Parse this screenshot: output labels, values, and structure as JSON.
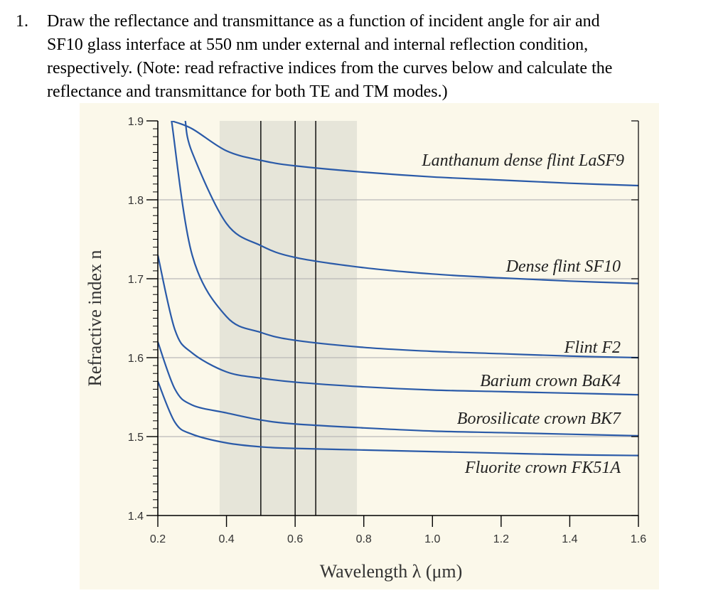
{
  "question": {
    "number": "1.",
    "lines": [
      "Draw the reflectance and transmittance as a function of incident angle for air and",
      "SF10 glass interface at 550 nm under external and internal reflection condition,",
      "respectively. (Note: read refractive indices from the curves below and calculate the",
      "reflectance and transmittance for both TE and TM modes.)"
    ]
  },
  "colors": {
    "plot_bg": "#fbf8ea",
    "visible_band": "#e6e5d9",
    "curve": "#2a5aa8",
    "grid": "#b9b9b9",
    "axis": "#000000",
    "marker_line": "#000000"
  },
  "chart_data": {
    "type": "line",
    "xlabel": "Wavelength λ (μm)",
    "ylabel": "Refractive index n",
    "xlim": [
      0.2,
      1.6
    ],
    "ylim": [
      1.4,
      1.9
    ],
    "xticks": [
      "0.2",
      "0.4",
      "0.6",
      "0.8",
      "1.0",
      "1.2",
      "1.4",
      "1.6"
    ],
    "yticks": [
      "1.4",
      "1.5",
      "1.6",
      "1.7",
      "1.8",
      "1.9"
    ],
    "grid": "horizontal",
    "shaded_band": [
      0.38,
      0.78
    ],
    "vertical_markers": [
      0.5,
      0.6,
      0.66
    ],
    "series": [
      {
        "name": "Lanthanum dense flint LaSF9",
        "x": [
          0.24,
          0.3,
          0.4,
          0.5,
          0.6,
          0.8,
          1.0,
          1.2,
          1.4,
          1.6
        ],
        "y": [
          1.9,
          1.89,
          1.862,
          1.85,
          1.843,
          1.835,
          1.829,
          1.825,
          1.821,
          1.818
        ]
      },
      {
        "name": "Dense flint SF10",
        "x": [
          0.28,
          0.3,
          0.4,
          0.5,
          0.6,
          0.8,
          1.0,
          1.2,
          1.4,
          1.6
        ],
        "y": [
          1.9,
          1.86,
          1.77,
          1.742,
          1.727,
          1.714,
          1.706,
          1.701,
          1.697,
          1.694
        ]
      },
      {
        "name": "Flint F2",
        "x": [
          0.24,
          0.3,
          0.4,
          0.5,
          0.6,
          0.8,
          1.0,
          1.2,
          1.4,
          1.6
        ],
        "y": [
          1.9,
          1.73,
          1.652,
          1.632,
          1.622,
          1.613,
          1.608,
          1.605,
          1.602,
          1.6
        ]
      },
      {
        "name": "Barium crown BaK4",
        "x": [
          0.2,
          0.25,
          0.3,
          0.4,
          0.5,
          0.6,
          0.8,
          1.0,
          1.2,
          1.4,
          1.6
        ],
        "y": [
          1.73,
          1.635,
          1.606,
          1.582,
          1.574,
          1.569,
          1.563,
          1.559,
          1.557,
          1.555,
          1.553
        ]
      },
      {
        "name": "Borosilicate crown BK7",
        "x": [
          0.2,
          0.25,
          0.3,
          0.4,
          0.5,
          0.6,
          0.8,
          1.0,
          1.2,
          1.4,
          1.6
        ],
        "y": [
          1.62,
          1.56,
          1.54,
          1.53,
          1.521,
          1.516,
          1.511,
          1.507,
          1.505,
          1.503,
          1.501
        ]
      },
      {
        "name": "Fluorite crown FK51A",
        "x": [
          0.2,
          0.25,
          0.3,
          0.4,
          0.5,
          0.6,
          0.8,
          1.0,
          1.2,
          1.4,
          1.6
        ],
        "y": [
          1.57,
          1.518,
          1.503,
          1.492,
          1.487,
          1.485,
          1.483,
          1.481,
          1.479,
          1.477,
          1.476
        ]
      }
    ],
    "curve_labels": [
      "Lanthanum dense flint LaSF9",
      "Dense flint SF10",
      "Flint F2",
      "Barium crown BaK4",
      "Borosilicate crown BK7",
      "Fluorite crown FK51A"
    ]
  }
}
